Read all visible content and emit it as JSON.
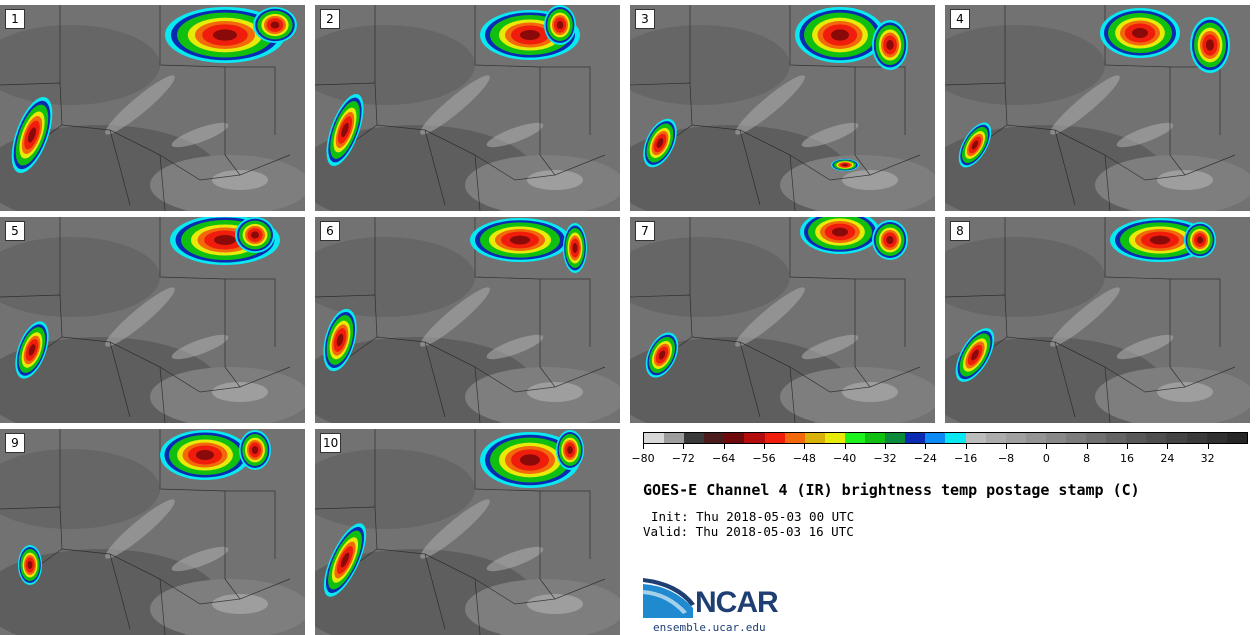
{
  "panels": [
    {
      "label": "1"
    },
    {
      "label": "2"
    },
    {
      "label": "3"
    },
    {
      "label": "4"
    },
    {
      "label": "5"
    },
    {
      "label": "6"
    },
    {
      "label": "7"
    },
    {
      "label": "8"
    },
    {
      "label": "9"
    },
    {
      "label": "10"
    }
  ],
  "colorbar": {
    "colors": [
      "#d8d8d8",
      "#9e9e9e",
      "#3a3a3a",
      "#4a1c1c",
      "#6e0a0a",
      "#b30c0c",
      "#f01c0c",
      "#f2680a",
      "#d8b20a",
      "#e8ea0a",
      "#1cf21c",
      "#10c010",
      "#0a8a3a",
      "#0a2ab2",
      "#0a8af2",
      "#0ae8f2",
      "#bcbcbc",
      "#acacac",
      "#a0a0a0",
      "#949494",
      "#888888",
      "#7c7c7c",
      "#707070",
      "#646464",
      "#585858",
      "#4e4e4e",
      "#444444",
      "#3a3a3a",
      "#303030",
      "#262626"
    ],
    "ticks": [
      "−80",
      "−72",
      "−64",
      "−56",
      "−48",
      "−40",
      "−32",
      "−24",
      "−16",
      "−8",
      "0",
      "8",
      "16",
      "24",
      "32"
    ]
  },
  "title": "GOES-E Channel 4 (IR) brightness temp postage stamp (C)",
  "init": "Init: Thu 2018-05-03 00 UTC",
  "valid": "Valid: Thu 2018-05-03 16 UTC",
  "logo": {
    "name": "NCAR",
    "url": "ensemble.ucar.edu"
  }
}
